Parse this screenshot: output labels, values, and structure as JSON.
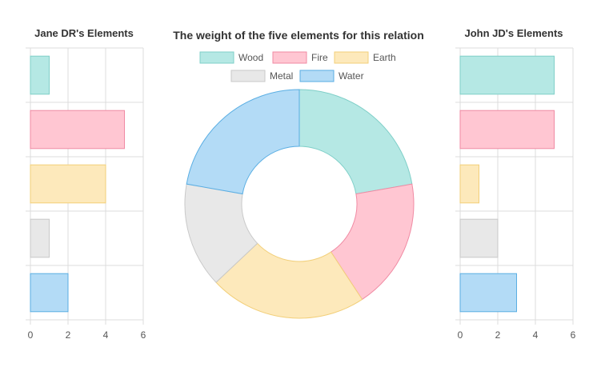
{
  "colors": {
    "wood": {
      "fill": "#b5e8e4",
      "stroke": "#7fcfc8"
    },
    "fire": {
      "fill": "#ffc6d2",
      "stroke": "#f08aa3"
    },
    "earth": {
      "fill": "#fde9bb",
      "stroke": "#f2cf79"
    },
    "metal": {
      "fill": "#e8e8e8",
      "stroke": "#c9c9c9"
    },
    "water": {
      "fill": "#b3dbf6",
      "stroke": "#5aaee3"
    },
    "grid": "#dcdcdc"
  },
  "chart_data": [
    {
      "type": "bar",
      "orientation": "horizontal",
      "title": "Jane DR's Elements",
      "categories": [
        "Wood",
        "Fire",
        "Earth",
        "Metal",
        "Water"
      ],
      "values": [
        1,
        5,
        4,
        1,
        2
      ],
      "xlim": [
        0,
        6
      ],
      "xticks": [
        "0",
        "2",
        "4",
        "6"
      ],
      "grid": true
    },
    {
      "type": "pie",
      "title": "The weight of the five elements for this relation",
      "donut": true,
      "labels": [
        "Wood",
        "Fire",
        "Earth",
        "Metal",
        "Water"
      ],
      "values": [
        6,
        5,
        6,
        4,
        6
      ],
      "legend": "top"
    },
    {
      "type": "bar",
      "orientation": "horizontal",
      "title": "John JD's Elements",
      "categories": [
        "Wood",
        "Fire",
        "Earth",
        "Metal",
        "Water"
      ],
      "values": [
        5,
        5,
        1,
        2,
        3
      ],
      "xlim": [
        0,
        6
      ],
      "xticks": [
        "0",
        "2",
        "4",
        "6"
      ],
      "grid": true
    }
  ]
}
